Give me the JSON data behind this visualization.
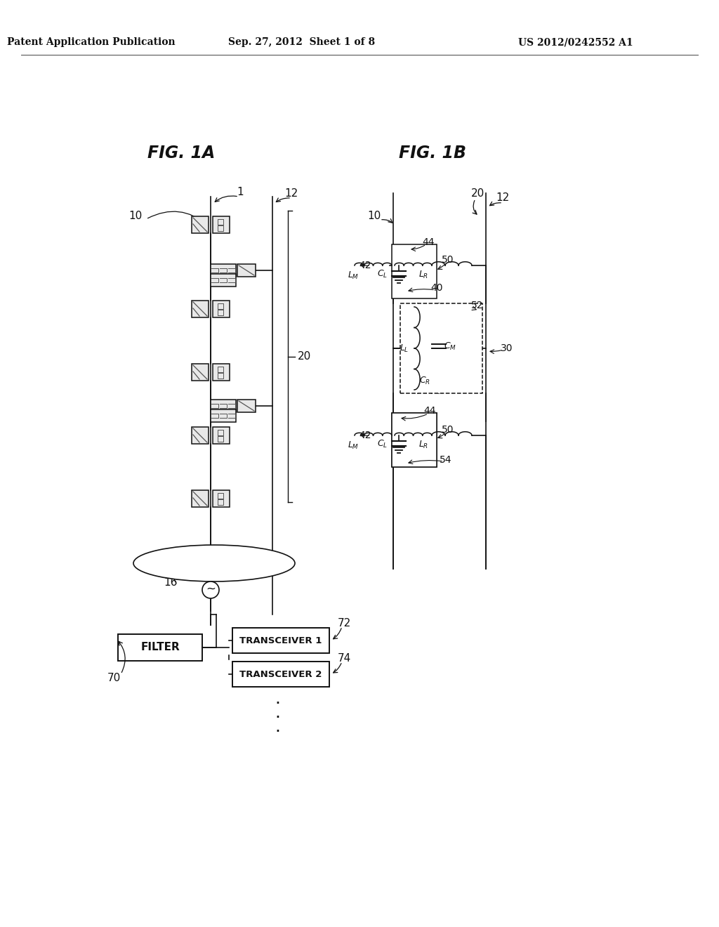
{
  "bg_color": "#ffffff",
  "text_color": "#111111",
  "header_left": "Patent Application Publication",
  "header_mid": "Sep. 27, 2012  Sheet 1 of 8",
  "header_right": "US 2012/0242552 A1",
  "fig1a_title": "FIG. 1A",
  "fig1b_title": "FIG. 1B",
  "lw": 1.2
}
